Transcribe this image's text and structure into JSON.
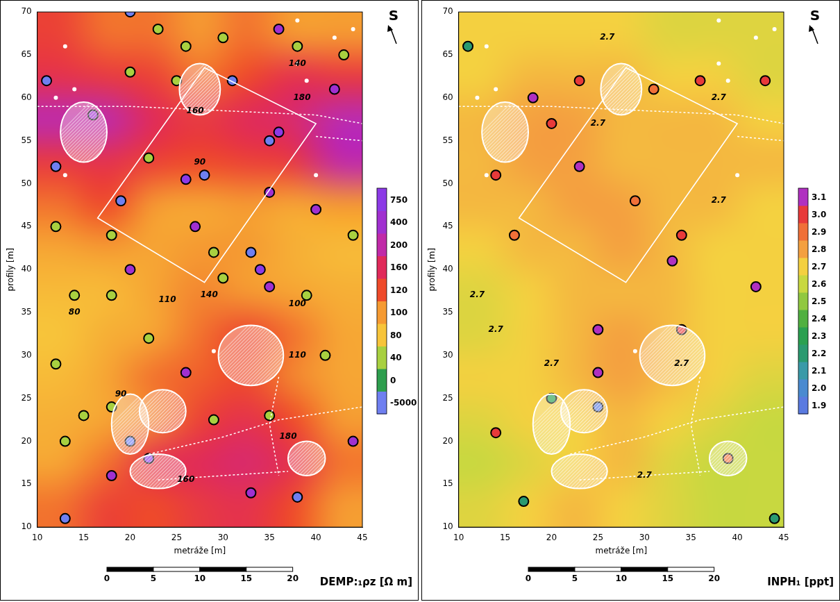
{
  "chart_data": [
    {
      "type": "heatmap",
      "title": "DEMP:₁ρz [Ω m]",
      "north_arrow": "S",
      "x_label": "metráže [m]",
      "y_label": "profily [m]",
      "xlim": [
        10,
        45
      ],
      "xticks": [
        10,
        15,
        20,
        25,
        30,
        35,
        40,
        45
      ],
      "ylim": [
        10,
        70
      ],
      "yticks": [
        10,
        15,
        20,
        25,
        30,
        35,
        40,
        45,
        50,
        55,
        60,
        65,
        70
      ],
      "grid": false,
      "scale_bar": [
        0,
        5,
        10,
        15,
        20
      ],
      "colorbar": {
        "ticks": [
          -5000,
          0,
          40,
          80,
          100,
          120,
          160,
          200,
          400,
          750
        ],
        "colors": [
          "#6f7ff0",
          "#2e9e4e",
          "#a8d040",
          "#f7c43a",
          "#f59a32",
          "#ee4a2a",
          "#e02a5a",
          "#c02aa8",
          "#a030d0",
          "#8c3ae6"
        ]
      },
      "cells": {
        "x": [
          12.5,
          17.5,
          22.5,
          27.5,
          32.5,
          37.5,
          42.5
        ],
        "y": [
          12.5,
          17.5,
          22.5,
          27.5,
          32.5,
          37.5,
          42.5,
          47.5,
          52.5,
          57.5,
          62.5,
          67.5
        ],
        "values": [
          [
            110,
            130,
            120,
            140,
            150,
            120,
            100
          ],
          [
            95,
            110,
            150,
            160,
            170,
            150,
            110
          ],
          [
            90,
            95,
            105,
            130,
            150,
            120,
            100
          ],
          [
            85,
            95,
            110,
            115,
            120,
            105,
            95
          ],
          [
            80,
            90,
            95,
            110,
            125,
            110,
            95
          ],
          [
            85,
            85,
            95,
            105,
            100,
            95,
            90
          ],
          [
            95,
            100,
            95,
            100,
            100,
            90,
            85
          ],
          [
            110,
            120,
            100,
            95,
            100,
            95,
            100
          ],
          [
            140,
            150,
            130,
            120,
            130,
            140,
            200
          ],
          [
            220,
            220,
            160,
            140,
            160,
            170,
            240
          ],
          [
            150,
            140,
            130,
            110,
            120,
            150,
            140
          ],
          [
            130,
            110,
            110,
            100,
            110,
            100,
            100
          ]
        ]
      },
      "anomalies": {
        "marker": "circle",
        "x": [
          13,
          20,
          22,
          18,
          38,
          33,
          44,
          35,
          29,
          13,
          26,
          22,
          14,
          18,
          12,
          20,
          18,
          27,
          29,
          33,
          34,
          35,
          30,
          19,
          26,
          28,
          22,
          35,
          35,
          36,
          31,
          25,
          20,
          20,
          26,
          30,
          36,
          38,
          42,
          43,
          12,
          16,
          11,
          23,
          40,
          44,
          41,
          18,
          15,
          12,
          39
        ],
        "y": [
          11,
          20,
          18,
          16,
          13.5,
          14,
          20,
          23,
          22.5,
          20,
          28,
          32,
          37,
          37,
          45,
          40,
          44,
          45,
          42,
          42,
          40,
          38,
          39,
          48,
          50.5,
          51,
          53,
          49,
          55,
          56,
          62,
          62,
          63,
          70,
          66,
          67,
          68,
          66,
          61,
          65,
          52,
          58,
          62,
          68,
          47,
          44,
          30,
          24,
          23,
          29,
          37
        ],
        "values": [
          -5000,
          -5000,
          750,
          400,
          -5000,
          400,
          400,
          40,
          40,
          40,
          400,
          40,
          40,
          40,
          40,
          400,
          40,
          400,
          40,
          -5000,
          750,
          400,
          40,
          -5000,
          750,
          -5000,
          40,
          400,
          -5000,
          750,
          -5000,
          40,
          40,
          -5000,
          40,
          40,
          400,
          40,
          400,
          40,
          -5000,
          400,
          -5000,
          40,
          400,
          40,
          40,
          40,
          40,
          40,
          40
        ]
      },
      "annotations": [
        {
          "x": 38,
          "y": 64,
          "text": "140"
        },
        {
          "x": 38.5,
          "y": 60,
          "text": "180"
        },
        {
          "x": 27,
          "y": 58.5,
          "text": "160"
        },
        {
          "x": 27.5,
          "y": 52.5,
          "text": "90"
        },
        {
          "x": 14,
          "y": 35,
          "text": "80"
        },
        {
          "x": 24,
          "y": 36.5,
          "text": "110"
        },
        {
          "x": 28.5,
          "y": 37,
          "text": "140"
        },
        {
          "x": 38,
          "y": 36,
          "text": "100"
        },
        {
          "x": 38,
          "y": 30,
          "text": "110"
        },
        {
          "x": 19,
          "y": 25.5,
          "text": "90"
        },
        {
          "x": 37,
          "y": 20.5,
          "text": "180"
        },
        {
          "x": 26,
          "y": 15.5,
          "text": "160"
        }
      ],
      "overlays": {
        "ellipses": [
          {
            "x": 15,
            "y": 56,
            "rx": 2.5,
            "ry": 3.5
          },
          {
            "x": 27.5,
            "y": 61,
            "rx": 2.2,
            "ry": 3
          },
          {
            "x": 33,
            "y": 30,
            "rx": 3.5,
            "ry": 3.5
          },
          {
            "x": 20,
            "y": 22,
            "rx": 2,
            "ry": 3.5
          },
          {
            "x": 23.5,
            "y": 23.5,
            "rx": 2.5,
            "ry": 2.5
          },
          {
            "x": 23,
            "y": 16.5,
            "rx": 3,
            "ry": 2
          },
          {
            "x": 39,
            "y": 18,
            "rx": 2,
            "ry": 2
          }
        ],
        "polygons": [
          [
            [
              16.5,
              46
            ],
            [
              28,
              63.5
            ],
            [
              40,
              57
            ],
            [
              28,
              38.5
            ]
          ]
        ],
        "lines": [
          [
            [
              10,
              59
            ],
            [
              20,
              59
            ],
            [
              30,
              58.5
            ],
            [
              40,
              58
            ],
            [
              45,
              57
            ]
          ],
          [
            [
              40,
              55.5
            ],
            [
              45,
              55
            ]
          ],
          [
            [
              22,
              18.5
            ],
            [
              30,
              20.5
            ],
            [
              36,
              22.5
            ],
            [
              45,
              24
            ]
          ],
          [
            [
              36,
              27.5
            ],
            [
              35,
              22
            ],
            [
              36,
              16
            ]
          ],
          [
            [
              23,
              15.5
            ],
            [
              30,
              16
            ],
            [
              37,
              16.5
            ]
          ]
        ],
        "dots": [
          [
            13,
            66
          ],
          [
            14,
            61
          ],
          [
            13,
            51
          ],
          [
            12,
            60
          ],
          [
            38,
            69
          ],
          [
            42,
            67
          ],
          [
            44,
            68
          ],
          [
            38,
            64
          ],
          [
            39,
            62
          ],
          [
            40,
            51
          ],
          [
            29,
            30.5
          ]
        ]
      }
    },
    {
      "type": "heatmap",
      "title": "INPH₁ [ppt]",
      "north_arrow": "S",
      "x_label": "metráže [m]",
      "y_label": "profily [m]",
      "xlim": [
        10,
        45
      ],
      "xticks": [
        10,
        15,
        20,
        25,
        30,
        35,
        40,
        45
      ],
      "ylim": [
        10,
        70
      ],
      "yticks": [
        10,
        15,
        20,
        25,
        30,
        35,
        40,
        45,
        50,
        55,
        60,
        65,
        70
      ],
      "grid": false,
      "scale_bar": [
        0,
        5,
        10,
        15,
        20
      ],
      "colorbar": {
        "ticks": [
          1.9,
          {
            "value": 2,
            "label": "2.0"
          },
          2.1,
          2.2,
          2.3,
          2.4,
          2.5,
          2.6,
          2.7,
          2.8,
          2.9,
          {
            "value": 3,
            "label": "3.0"
          },
          3.1
        ],
        "colors": [
          "#5a7ae0",
          "#4a8ad0",
          "#3a9aa8",
          "#2a9a70",
          "#2aa050",
          "#50b040",
          "#90c840",
          "#c8d840",
          "#f4d040",
          "#f4a040",
          "#f07038",
          "#e83a3a",
          "#b030c0"
        ]
      },
      "cells": {
        "x": [
          12.5,
          17.5,
          22.5,
          27.5,
          32.5,
          37.5,
          42.5
        ],
        "y": [
          12.5,
          17.5,
          22.5,
          27.5,
          32.5,
          37.5,
          42.5,
          47.5,
          52.5,
          57.5,
          62.5,
          67.5
        ],
        "values": [
          [
            2.65,
            2.7,
            2.75,
            2.7,
            2.65,
            2.6,
            2.6
          ],
          [
            2.6,
            2.65,
            2.7,
            2.75,
            2.65,
            2.6,
            2.6
          ],
          [
            2.65,
            2.7,
            2.7,
            2.75,
            2.7,
            2.65,
            2.6
          ],
          [
            2.7,
            2.7,
            2.75,
            2.8,
            2.75,
            2.7,
            2.65
          ],
          [
            2.65,
            2.7,
            2.75,
            2.8,
            2.75,
            2.7,
            2.7
          ],
          [
            2.65,
            2.7,
            2.75,
            2.75,
            2.75,
            2.7,
            2.7
          ],
          [
            2.7,
            2.75,
            2.75,
            2.8,
            2.75,
            2.7,
            2.7
          ],
          [
            2.75,
            2.75,
            2.8,
            2.8,
            2.75,
            2.75,
            2.7
          ],
          [
            2.75,
            2.8,
            2.8,
            2.75,
            2.75,
            2.75,
            2.75
          ],
          [
            2.75,
            2.8,
            2.8,
            2.75,
            2.75,
            2.75,
            2.7
          ],
          [
            2.7,
            2.75,
            2.75,
            2.75,
            2.7,
            2.7,
            2.65
          ],
          [
            2.7,
            2.7,
            2.7,
            2.7,
            2.65,
            2.65,
            2.65
          ]
        ]
      },
      "anomalies": {
        "marker": "circle",
        "x": [
          18,
          23,
          14,
          23,
          25,
          25,
          25,
          34,
          33,
          42,
          36,
          43,
          14,
          17,
          44,
          20,
          31,
          34,
          29,
          16,
          11,
          39,
          20
        ],
        "y": [
          60,
          62,
          51,
          52,
          33,
          28,
          24,
          44,
          41,
          38,
          62,
          62,
          21,
          13,
          11,
          57,
          61,
          33,
          48,
          44,
          66,
          18,
          25
        ],
        "values": [
          3.1,
          3.0,
          3.0,
          3.1,
          3.1,
          3.1,
          1.9,
          3.0,
          3.1,
          3.1,
          3.0,
          3.0,
          3.0,
          2.2,
          2.2,
          3.0,
          2.9,
          3.0,
          2.9,
          2.9,
          2.2,
          2.9,
          2.3
        ]
      },
      "annotations": [
        {
          "x": 26,
          "y": 67,
          "text": "2.7"
        },
        {
          "x": 38,
          "y": 60,
          "text": "2.7"
        },
        {
          "x": 25,
          "y": 57,
          "text": "2.7"
        },
        {
          "x": 38,
          "y": 48,
          "text": "2.7"
        },
        {
          "x": 12,
          "y": 37,
          "text": "2.7"
        },
        {
          "x": 14,
          "y": 33,
          "text": "2.7"
        },
        {
          "x": 20,
          "y": 29,
          "text": "2.7"
        },
        {
          "x": 34,
          "y": 29,
          "text": "2.7"
        },
        {
          "x": 30,
          "y": 16,
          "text": "2.7"
        }
      ],
      "overlays": {
        "ellipses": [
          {
            "x": 15,
            "y": 56,
            "rx": 2.5,
            "ry": 3.5
          },
          {
            "x": 27.5,
            "y": 61,
            "rx": 2.2,
            "ry": 3
          },
          {
            "x": 33,
            "y": 30,
            "rx": 3.5,
            "ry": 3.5
          },
          {
            "x": 20,
            "y": 22,
            "rx": 2,
            "ry": 3.5
          },
          {
            "x": 23.5,
            "y": 23.5,
            "rx": 2.5,
            "ry": 2.5
          },
          {
            "x": 23,
            "y": 16.5,
            "rx": 3,
            "ry": 2
          },
          {
            "x": 39,
            "y": 18,
            "rx": 2,
            "ry": 2
          }
        ],
        "polygons": [
          [
            [
              16.5,
              46
            ],
            [
              28,
              63.5
            ],
            [
              40,
              57
            ],
            [
              28,
              38.5
            ]
          ]
        ],
        "lines": [
          [
            [
              10,
              59
            ],
            [
              20,
              59
            ],
            [
              30,
              58.5
            ],
            [
              40,
              58
            ],
            [
              45,
              57
            ]
          ],
          [
            [
              40,
              55.5
            ],
            [
              45,
              55
            ]
          ],
          [
            [
              22,
              18.5
            ],
            [
              30,
              20.5
            ],
            [
              36,
              22.5
            ],
            [
              45,
              24
            ]
          ],
          [
            [
              36,
              27.5
            ],
            [
              35,
              22
            ],
            [
              36,
              16
            ]
          ],
          [
            [
              23,
              15.5
            ],
            [
              30,
              16
            ],
            [
              37,
              16.5
            ]
          ]
        ],
        "dots": [
          [
            13,
            66
          ],
          [
            14,
            61
          ],
          [
            13,
            51
          ],
          [
            12,
            60
          ],
          [
            38,
            69
          ],
          [
            42,
            67
          ],
          [
            44,
            68
          ],
          [
            38,
            64
          ],
          [
            39,
            62
          ],
          [
            40,
            51
          ],
          [
            29,
            30.5
          ]
        ]
      }
    }
  ]
}
